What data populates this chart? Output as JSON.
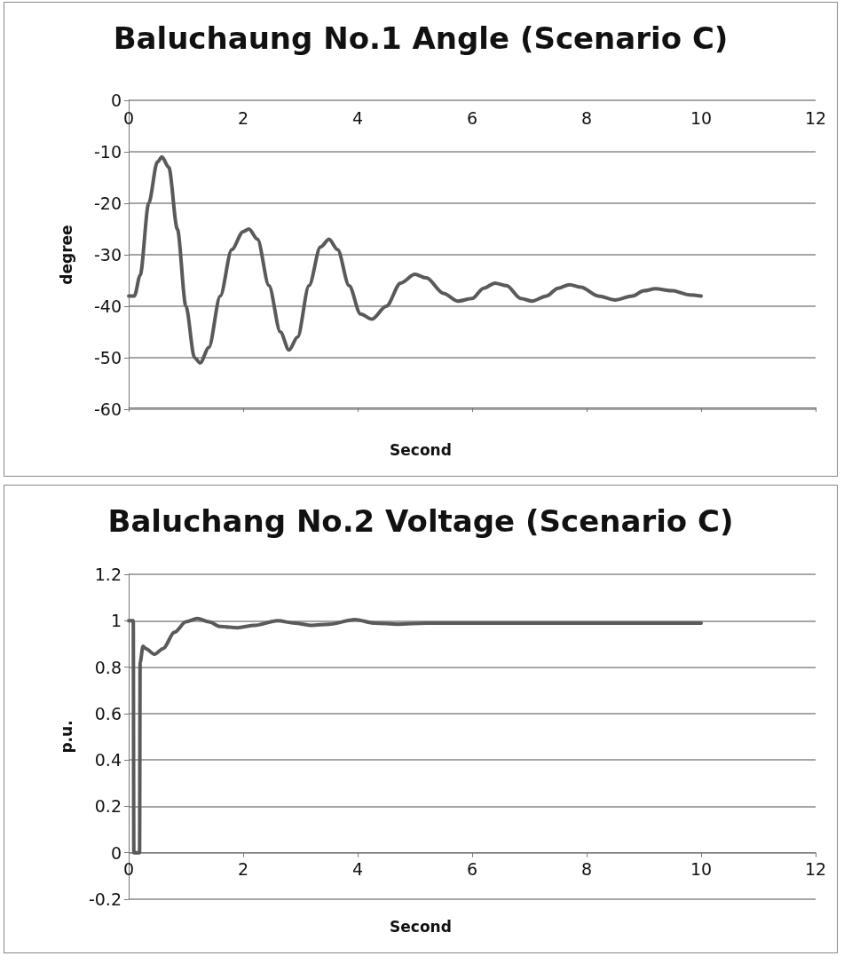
{
  "chart_data": [
    {
      "type": "line",
      "title": "Baluchaung No.1 Angle (Scenario C)",
      "xlabel": "Second",
      "ylabel": "degree",
      "xlim": [
        0,
        12
      ],
      "xticks": [
        0,
        2,
        4,
        6,
        8,
        10,
        12
      ],
      "ylim": [
        -60,
        0
      ],
      "yticks": [
        -60,
        -50,
        -40,
        -30,
        -20,
        -10,
        0
      ],
      "grid": "y",
      "marker": "none",
      "series": [
        {
          "color": "#5a5a5a",
          "x": [
            0,
            0.1,
            0.2,
            0.35,
            0.5,
            0.58,
            0.7,
            0.85,
            1.0,
            1.15,
            1.25,
            1.4,
            1.6,
            1.8,
            2.0,
            2.1,
            2.25,
            2.45,
            2.65,
            2.8,
            2.95,
            3.15,
            3.35,
            3.5,
            3.65,
            3.85,
            4.05,
            4.25,
            4.5,
            4.75,
            5.0,
            5.2,
            5.5,
            5.75,
            6.0,
            6.2,
            6.4,
            6.6,
            6.85,
            7.05,
            7.3,
            7.5,
            7.7,
            7.9,
            8.2,
            8.5,
            8.8,
            9.0,
            9.2,
            9.5,
            9.8,
            10
          ],
          "values": [
            -38,
            -38,
            -34,
            -20,
            -12,
            -11,
            -13,
            -25,
            -40,
            -50,
            -51,
            -48,
            -38,
            -29,
            -25.5,
            -25,
            -27,
            -36,
            -45,
            -48.5,
            -46,
            -36,
            -28.5,
            -27,
            -29,
            -36,
            -41.5,
            -42.5,
            -40,
            -35.5,
            -33.8,
            -34.5,
            -37.5,
            -39,
            -38.5,
            -36.5,
            -35.5,
            -36,
            -38.5,
            -39,
            -38,
            -36.5,
            -35.8,
            -36.3,
            -38,
            -38.8,
            -38,
            -37,
            -36.6,
            -37,
            -37.8,
            -38
          ]
        }
      ]
    },
    {
      "type": "line",
      "title": "Baluchang No.2 Voltage (Scenario C)",
      "xlabel": "Second",
      "ylabel": "p.u.",
      "xlim": [
        0,
        12
      ],
      "xticks": [
        0,
        2,
        4,
        6,
        8,
        10,
        12
      ],
      "ylim": [
        -0.2,
        1.2
      ],
      "yticks": [
        -0.2,
        0,
        0.2,
        0.4,
        0.6,
        0.8,
        1,
        1.2
      ],
      "grid": "y",
      "marker": "none",
      "series": [
        {
          "color": "#5a5a5a",
          "x": [
            0,
            0.08,
            0.09,
            0.19,
            0.2,
            0.25,
            0.3,
            0.45,
            0.6,
            0.8,
            1.0,
            1.2,
            1.4,
            1.6,
            1.9,
            2.2,
            2.6,
            2.9,
            3.2,
            3.5,
            3.95,
            4.3,
            4.7,
            5.2,
            6,
            8,
            10
          ],
          "values": [
            1,
            1,
            0,
            0,
            0.82,
            0.89,
            0.88,
            0.855,
            0.88,
            0.95,
            0.995,
            1.01,
            0.995,
            0.975,
            0.97,
            0.98,
            1.0,
            0.99,
            0.98,
            0.985,
            1.005,
            0.99,
            0.985,
            0.99,
            0.99,
            0.99,
            0.99
          ]
        }
      ]
    }
  ]
}
